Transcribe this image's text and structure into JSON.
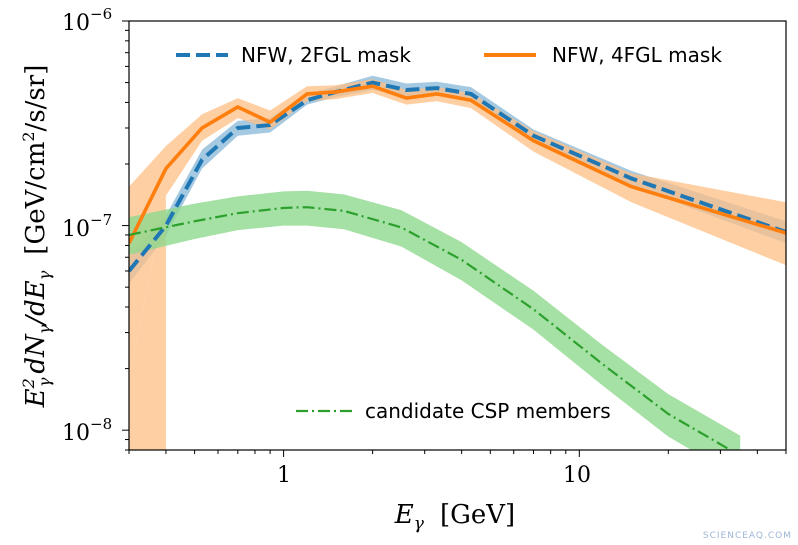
{
  "chart_data": {
    "type": "line",
    "title": "",
    "xlabel_symbol": "E",
    "xlabel_sub": "γ",
    "xlabel_unit": "[GeV]",
    "ylabel_parts": {
      "e": "E",
      "e_sub": "γ",
      "e_sup": "2",
      "dN": "dN",
      "dN_sub": "γ",
      "slash_dE": "/dE",
      "dE_sub": "γ",
      "unit_open": "[GeV/cm",
      "unit_sup": "2",
      "unit_close": "/s/sr]"
    },
    "xscale": "log",
    "yscale": "log",
    "xlim": [
      0.3,
      50
    ],
    "ylim": [
      8e-09,
      1e-06
    ],
    "x_ticks": [
      {
        "value": 1,
        "label": "1"
      },
      {
        "value": 10,
        "label": "10"
      }
    ],
    "y_ticks": [
      {
        "value": 1e-08,
        "base": "10",
        "exp": "−8"
      },
      {
        "value": 1e-07,
        "base": "10",
        "exp": "−7"
      },
      {
        "value": 1e-06,
        "base": "10",
        "exp": "−6"
      }
    ],
    "grid": false,
    "legend_top": {
      "placement": "top",
      "entries": [
        "NFW, 2FGL mask",
        "NFW, 4FGL mask"
      ]
    },
    "legend_bottom": {
      "placement": "bottom-center",
      "entries": [
        "candidate CSP members"
      ]
    },
    "series": [
      {
        "name": "NFW, 2FGL mask",
        "color": "#1f77b4",
        "band_color": "#8fbbd9",
        "style": "dashed",
        "x": [
          0.3,
          0.4,
          0.53,
          0.7,
          0.9,
          1.2,
          1.5,
          2.0,
          2.6,
          3.3,
          4.3,
          7.0,
          15.0,
          50.0
        ],
        "y": [
          6e-08,
          1e-07,
          2.1e-07,
          3e-07,
          3.1e-07,
          4.1e-07,
          4.5e-07,
          5e-07,
          4.6e-07,
          4.7e-07,
          4.4e-07,
          2.75e-07,
          1.7e-07,
          9.3e-08
        ],
        "y_low": [
          5.2e-08,
          8.9e-08,
          1.9e-07,
          2.75e-07,
          2.85e-07,
          3.9e-07,
          4.25e-07,
          4.6e-07,
          4.3e-07,
          4.35e-07,
          4.1e-07,
          2.55e-07,
          1.56e-07,
          8.2e-08
        ],
        "y_high": [
          7e-08,
          1.12e-07,
          2.35e-07,
          3.25e-07,
          3.35e-07,
          4.4e-07,
          4.8e-07,
          5.4e-07,
          4.95e-07,
          5.05e-07,
          4.75e-07,
          2.95e-07,
          1.85e-07,
          1.05e-07
        ]
      },
      {
        "name": "NFW, 4FGL mask",
        "color": "#ff7f0e",
        "band_color": "#ffbf86",
        "style": "solid",
        "x": [
          0.3,
          0.4,
          0.53,
          0.7,
          0.9,
          1.2,
          1.5,
          2.0,
          2.6,
          3.3,
          4.3,
          7.0,
          15.0,
          50.0
        ],
        "y": [
          8.2e-08,
          1.9e-07,
          3e-07,
          3.8e-07,
          3.2e-07,
          4.4e-07,
          4.5e-07,
          4.8e-07,
          4.2e-07,
          4.4e-07,
          4.1e-07,
          2.6e-07,
          1.55e-07,
          9.2e-08
        ],
        "y_low": [
          1.8e-08,
          1.4e-07,
          2.6e-07,
          3.35e-07,
          2.95e-07,
          4.05e-07,
          4.15e-07,
          4.45e-07,
          3.9e-07,
          4.05e-07,
          3.75e-07,
          2.3e-07,
          1.3e-07,
          6.4e-08
        ],
        "y_high": [
          1.55e-07,
          2.45e-07,
          3.5e-07,
          4.2e-07,
          3.65e-07,
          4.8e-07,
          4.85e-07,
          5.2e-07,
          4.6e-07,
          4.75e-07,
          4.45e-07,
          2.9e-07,
          1.8e-07,
          1.3e-07
        ],
        "band_floor_x": [
          0.3,
          0.4
        ],
        "band_floor": 8e-09
      },
      {
        "name": "candidate CSP members",
        "color": "#2ca02c",
        "band_color": "#8fd88f",
        "style": "dashdot",
        "x": [
          0.3,
          0.5,
          0.7,
          1.0,
          1.2,
          1.6,
          2.5,
          4.0,
          7.0,
          12.0,
          20.0,
          35.0
        ],
        "y": [
          9e-08,
          1.05e-07,
          1.15e-07,
          1.22e-07,
          1.23e-07,
          1.18e-07,
          9.8e-08,
          6.8e-08,
          3.9e-08,
          2.1e-08,
          1.2e-08,
          7.5e-09
        ],
        "y_low": [
          7.2e-08,
          8.6e-08,
          9.5e-08,
          1e-07,
          1e-07,
          9.6e-08,
          7.9e-08,
          5.4e-08,
          3.1e-08,
          1.65e-08,
          9.3e-09,
          5.8e-09
        ],
        "y_high": [
          1.1e-07,
          1.28e-07,
          1.39e-07,
          1.47e-07,
          1.48e-07,
          1.42e-07,
          1.19e-07,
          8.3e-08,
          4.8e-08,
          2.6e-08,
          1.5e-08,
          9.4e-09
        ]
      }
    ]
  },
  "watermark": "SCIENCEAQ.COM"
}
